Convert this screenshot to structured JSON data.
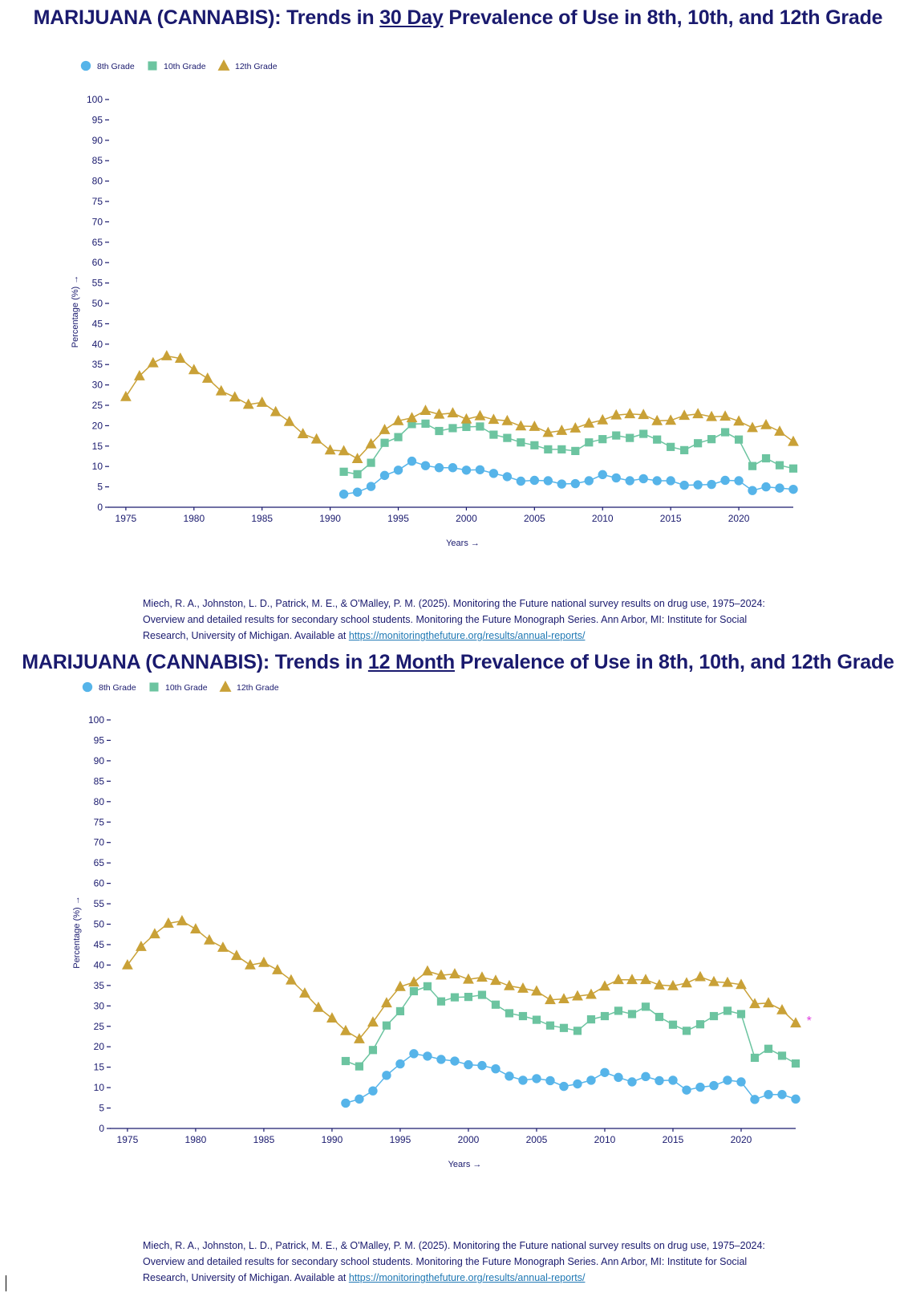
{
  "panels": [
    {
      "title_pre": "MARIJUANA (CANNABIS): Trends in ",
      "title_u": "30 Day",
      "title_post": " Prevalence of Use in 8th, 10th, and 12th Grade",
      "legend": [
        "8th Grade",
        "10th Grade",
        "12th Grade"
      ],
      "citation_text": "Miech, R. A., Johnston, L. D., Patrick, M. E., & O'Malley, P. M. (2025). Monitoring the Future national survey results on drug use, 1975–2024: Overview and detailed results for secondary school students. Monitoring the Future Monograph Series. Ann Arbor, MI: Institute for Social Research, University of Michigan. Available at ",
      "citation_link": "https://monitoringthefuture.org/results/annual-reports/"
    },
    {
      "title_pre": "MARIJUANA (CANNABIS): Trends in ",
      "title_u": "12 Month",
      "title_post": " Prevalence of Use in 8th, 10th, and 12th Grade",
      "legend": [
        "8th Grade",
        "10th Grade",
        "12th Grade"
      ],
      "citation_text": "Miech, R. A., Johnston, L. D., Patrick, M. E., & O'Malley, P. M. (2025). Monitoring the Future national survey results on drug use, 1975–2024: Overview and detailed results for secondary school students. Monitoring the Future Monograph Series. Ann Arbor, MI: Institute for Social Research, University of Michigan. Available at ",
      "citation_link": "https://monitoringthefuture.org/results/annual-reports/"
    }
  ],
  "colors": {
    "grade8": "#56b4e9",
    "grade10": "#6cc4a0",
    "grade12": "#c9a137",
    "title": "#1a1a6e",
    "asterisk": "#e040e0"
  },
  "chart_data": [
    {
      "type": "line",
      "title": "MARIJUANA (CANNABIS): Trends in 30 Day Prevalence of Use in 8th, 10th, and 12th Grade",
      "xlabel": "Years →",
      "ylabel": "Percentage (%) →",
      "xlim": [
        1974.3,
        2024
      ],
      "ylim": [
        0,
        100
      ],
      "xticks": [
        1975,
        1980,
        1985,
        1990,
        1995,
        2000,
        2005,
        2010,
        2015,
        2020
      ],
      "yticks": [
        0,
        5,
        10,
        15,
        20,
        25,
        30,
        35,
        40,
        45,
        50,
        55,
        60,
        65,
        70,
        75,
        80,
        85,
        90,
        95,
        100
      ],
      "legend_position": "top-left",
      "grid": false,
      "series": [
        {
          "name": "8th Grade",
          "marker": "circle",
          "x": [
            1991,
            1992,
            1993,
            1994,
            1995,
            1996,
            1997,
            1998,
            1999,
            2000,
            2001,
            2002,
            2003,
            2004,
            2005,
            2006,
            2007,
            2008,
            2009,
            2010,
            2011,
            2012,
            2013,
            2014,
            2015,
            2016,
            2017,
            2018,
            2019,
            2020,
            2021,
            2022,
            2023,
            2024
          ],
          "y": [
            3.2,
            3.7,
            5.1,
            7.8,
            9.1,
            11.3,
            10.2,
            9.7,
            9.7,
            9.1,
            9.2,
            8.3,
            7.5,
            6.4,
            6.6,
            6.5,
            5.7,
            5.8,
            6.5,
            8.0,
            7.2,
            6.5,
            7.0,
            6.5,
            6.5,
            5.4,
            5.5,
            5.6,
            6.6,
            6.5,
            4.1,
            5.0,
            4.7,
            4.4
          ]
        },
        {
          "name": "10th Grade",
          "marker": "square",
          "x": [
            1991,
            1992,
            1993,
            1994,
            1995,
            1996,
            1997,
            1998,
            1999,
            2000,
            2001,
            2002,
            2003,
            2004,
            2005,
            2006,
            2007,
            2008,
            2009,
            2010,
            2011,
            2012,
            2013,
            2014,
            2015,
            2016,
            2017,
            2018,
            2019,
            2020,
            2021,
            2022,
            2023,
            2024
          ],
          "y": [
            8.7,
            8.1,
            10.9,
            15.8,
            17.2,
            20.4,
            20.5,
            18.7,
            19.4,
            19.7,
            19.8,
            17.8,
            17.0,
            15.9,
            15.2,
            14.2,
            14.2,
            13.8,
            15.9,
            16.7,
            17.6,
            17.0,
            18.0,
            16.6,
            14.8,
            14.0,
            15.7,
            16.7,
            18.4,
            16.6,
            10.1,
            12.0,
            10.3,
            9.5
          ]
        },
        {
          "name": "12th Grade",
          "marker": "triangle",
          "x": [
            1975,
            1976,
            1977,
            1978,
            1979,
            1980,
            1981,
            1982,
            1983,
            1984,
            1985,
            1986,
            1987,
            1988,
            1989,
            1990,
            1991,
            1992,
            1993,
            1994,
            1995,
            1996,
            1997,
            1998,
            1999,
            2000,
            2001,
            2002,
            2003,
            2004,
            2005,
            2006,
            2007,
            2008,
            2009,
            2010,
            2011,
            2012,
            2013,
            2014,
            2015,
            2016,
            2017,
            2018,
            2019,
            2020,
            2021,
            2022,
            2023,
            2024
          ],
          "y": [
            27.1,
            32.2,
            35.4,
            37.1,
            36.5,
            33.7,
            31.6,
            28.5,
            27.0,
            25.2,
            25.7,
            23.4,
            21.0,
            18.0,
            16.7,
            14.0,
            13.8,
            11.9,
            15.5,
            19.0,
            21.2,
            21.9,
            23.7,
            22.8,
            23.1,
            21.6,
            22.4,
            21.5,
            21.2,
            19.9,
            19.8,
            18.3,
            18.8,
            19.4,
            20.6,
            21.4,
            22.6,
            22.9,
            22.7,
            21.2,
            21.3,
            22.5,
            22.9,
            22.2,
            22.3,
            21.1,
            19.5,
            20.2,
            18.6,
            16.1
          ]
        }
      ]
    },
    {
      "type": "line",
      "title": "MARIJUANA (CANNABIS): Trends in 12 Month Prevalence of Use in 8th, 10th, and 12th Grade",
      "xlabel": "Years →",
      "ylabel": "Percentage (%) →",
      "xlim": [
        1974.3,
        2024
      ],
      "ylim": [
        0,
        100
      ],
      "xticks": [
        1975,
        1980,
        1985,
        1990,
        1995,
        2000,
        2005,
        2010,
        2015,
        2020
      ],
      "yticks": [
        0,
        5,
        10,
        15,
        20,
        25,
        30,
        35,
        40,
        45,
        50,
        55,
        60,
        65,
        70,
        75,
        80,
        85,
        90,
        95,
        100
      ],
      "legend_position": "top-left",
      "grid": false,
      "annotations": [
        {
          "text": "*",
          "x": 2024.8,
          "y": 26.5
        }
      ],
      "series": [
        {
          "name": "8th Grade",
          "marker": "circle",
          "x": [
            1991,
            1992,
            1993,
            1994,
            1995,
            1996,
            1997,
            1998,
            1999,
            2000,
            2001,
            2002,
            2003,
            2004,
            2005,
            2006,
            2007,
            2008,
            2009,
            2010,
            2011,
            2012,
            2013,
            2014,
            2015,
            2016,
            2017,
            2018,
            2019,
            2020,
            2021,
            2022,
            2023,
            2024
          ],
          "y": [
            6.2,
            7.2,
            9.2,
            13.0,
            15.8,
            18.3,
            17.7,
            16.9,
            16.5,
            15.6,
            15.4,
            14.6,
            12.8,
            11.8,
            12.2,
            11.7,
            10.3,
            10.9,
            11.8,
            13.7,
            12.5,
            11.4,
            12.7,
            11.7,
            11.8,
            9.4,
            10.1,
            10.5,
            11.8,
            11.4,
            7.1,
            8.3,
            8.3,
            7.2
          ]
        },
        {
          "name": "10th Grade",
          "marker": "square",
          "x": [
            1991,
            1992,
            1993,
            1994,
            1995,
            1996,
            1997,
            1998,
            1999,
            2000,
            2001,
            2002,
            2003,
            2004,
            2005,
            2006,
            2007,
            2008,
            2009,
            2010,
            2011,
            2012,
            2013,
            2014,
            2015,
            2016,
            2017,
            2018,
            2019,
            2020,
            2021,
            2022,
            2023,
            2024
          ],
          "y": [
            16.5,
            15.2,
            19.2,
            25.2,
            28.7,
            33.6,
            34.8,
            31.1,
            32.1,
            32.2,
            32.7,
            30.3,
            28.2,
            27.5,
            26.6,
            25.2,
            24.6,
            23.9,
            26.7,
            27.5,
            28.8,
            28.0,
            29.8,
            27.3,
            25.4,
            23.9,
            25.5,
            27.5,
            28.8,
            28.0,
            17.3,
            19.5,
            17.8,
            15.9
          ]
        },
        {
          "name": "12th Grade",
          "marker": "triangle",
          "x": [
            1975,
            1976,
            1977,
            1978,
            1979,
            1980,
            1981,
            1982,
            1983,
            1984,
            1985,
            1986,
            1987,
            1988,
            1989,
            1990,
            1991,
            1992,
            1993,
            1994,
            1995,
            1996,
            1997,
            1998,
            1999,
            2000,
            2001,
            2002,
            2003,
            2004,
            2005,
            2006,
            2007,
            2008,
            2009,
            2010,
            2011,
            2012,
            2013,
            2014,
            2015,
            2016,
            2017,
            2018,
            2019,
            2020,
            2021,
            2022,
            2023,
            2024
          ],
          "y": [
            40.0,
            44.5,
            47.6,
            50.2,
            50.8,
            48.8,
            46.1,
            44.3,
            42.3,
            40.0,
            40.6,
            38.8,
            36.3,
            33.1,
            29.6,
            27.0,
            23.9,
            21.9,
            26.0,
            30.7,
            34.7,
            35.8,
            38.5,
            37.5,
            37.8,
            36.5,
            37.0,
            36.2,
            34.9,
            34.3,
            33.6,
            31.5,
            31.7,
            32.4,
            32.8,
            34.8,
            36.4,
            36.4,
            36.4,
            35.1,
            34.9,
            35.6,
            37.1,
            35.9,
            35.7,
            35.2,
            30.5,
            30.7,
            29.0,
            25.8
          ]
        }
      ]
    }
  ]
}
